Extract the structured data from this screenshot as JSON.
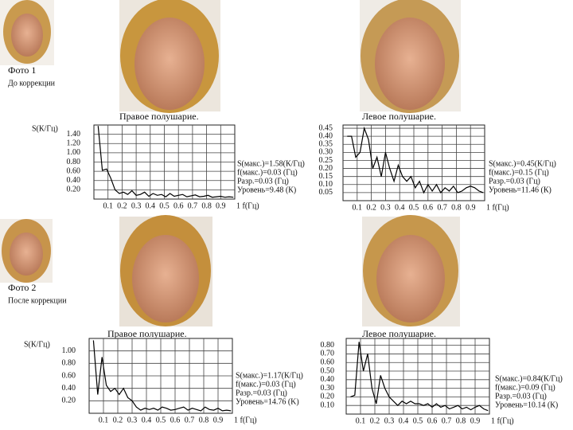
{
  "photo_labels": [
    {
      "title": "Фото 1",
      "subtitle": "До коррекции"
    },
    {
      "title": "Фото 2",
      "subtitle": "После коррекции"
    }
  ],
  "chart_data": [
    {
      "type": "line",
      "title": "Правое полушарие.",
      "ylabel": "S(К/Гц)",
      "x": [
        0.03,
        0.06,
        0.09,
        0.12,
        0.15,
        0.18,
        0.21,
        0.24,
        0.27,
        0.3,
        0.33,
        0.36,
        0.39,
        0.42,
        0.45,
        0.48,
        0.51,
        0.54,
        0.57,
        0.6,
        0.63,
        0.66,
        0.69,
        0.72,
        0.75,
        0.78,
        0.81,
        0.84,
        0.87,
        0.9,
        0.93,
        0.96,
        0.99
      ],
      "values": [
        1.58,
        0.62,
        0.65,
        0.45,
        0.2,
        0.12,
        0.15,
        0.1,
        0.18,
        0.08,
        0.1,
        0.15,
        0.06,
        0.12,
        0.08,
        0.1,
        0.05,
        0.12,
        0.06,
        0.08,
        0.1,
        0.05,
        0.07,
        0.09,
        0.05,
        0.06,
        0.08,
        0.04,
        0.05,
        0.06,
        0.04,
        0.05,
        0.04
      ],
      "color": "#000000",
      "xlim": [
        0,
        1
      ],
      "ylim": [
        0,
        1.6
      ],
      "xticks": [
        0.1,
        0.2,
        0.3,
        0.4,
        0.5,
        0.6,
        0.7,
        0.8,
        0.9,
        {
          "value": 1,
          "label": "1 f(Гц)"
        }
      ],
      "yticks": [
        {
          "value": 0.2,
          "label": "0.20"
        },
        {
          "value": 0.4,
          "label": "0.40"
        },
        {
          "value": 0.6,
          "label": "0.60"
        },
        {
          "value": 0.8,
          "label": "0.80"
        },
        {
          "value": 1.0,
          "label": "1.00"
        },
        {
          "value": 1.2,
          "label": "1.20"
        },
        {
          "value": 1.4,
          "label": "1.40"
        }
      ],
      "grid": true,
      "annotations": [
        "S(макс.)=1.58(К/Гц)",
        "f(макс.)=0.03 (Гц)",
        "Разр.=0.03 (Гц)",
        "Уровень=9.48 (К)"
      ]
    },
    {
      "type": "line",
      "title": "Левое полушарие.",
      "x": [
        0.03,
        0.06,
        0.09,
        0.12,
        0.15,
        0.18,
        0.21,
        0.24,
        0.27,
        0.3,
        0.33,
        0.36,
        0.39,
        0.42,
        0.45,
        0.48,
        0.51,
        0.54,
        0.57,
        0.6,
        0.63,
        0.66,
        0.69,
        0.72,
        0.75,
        0.78,
        0.81,
        0.84,
        0.87,
        0.9,
        0.93,
        0.96,
        0.99
      ],
      "values": [
        0.4,
        0.4,
        0.27,
        0.3,
        0.45,
        0.38,
        0.2,
        0.27,
        0.15,
        0.3,
        0.2,
        0.12,
        0.22,
        0.15,
        0.12,
        0.15,
        0.08,
        0.12,
        0.05,
        0.1,
        0.06,
        0.1,
        0.05,
        0.08,
        0.06,
        0.09,
        0.05,
        0.06,
        0.08,
        0.09,
        0.08,
        0.06,
        0.05
      ],
      "color": "#000000",
      "xlim": [
        0,
        1
      ],
      "ylim": [
        0,
        0.47
      ],
      "xticks": [
        0.1,
        0.2,
        0.3,
        0.4,
        0.5,
        0.6,
        0.7,
        0.8,
        0.9,
        {
          "value": 1,
          "label": "1 f(Гц)"
        }
      ],
      "yticks": [
        0.05,
        {
          "value": 0.1,
          "label": "0.10"
        },
        0.15,
        {
          "value": 0.2,
          "label": "0.20"
        },
        0.25,
        {
          "value": 0.3,
          "label": "0.30"
        },
        0.35,
        {
          "value": 0.4,
          "label": "0.40"
        },
        0.45
      ],
      "grid": true,
      "annotations": [
        "S(макс.)=0.45(К/Гц)",
        "f(макс.)=0.15 (Гц)",
        "Разр.=0.03 (Гц)",
        "Уровень=11.46 (К)"
      ]
    },
    {
      "type": "line",
      "title": "Правое полушарие.",
      "ylabel": "S(К/Гц)",
      "x": [
        0.03,
        0.06,
        0.09,
        0.12,
        0.15,
        0.18,
        0.21,
        0.24,
        0.27,
        0.3,
        0.33,
        0.36,
        0.39,
        0.42,
        0.45,
        0.48,
        0.51,
        0.54,
        0.57,
        0.6,
        0.63,
        0.66,
        0.69,
        0.72,
        0.75,
        0.78,
        0.81,
        0.84,
        0.87,
        0.9,
        0.93,
        0.96,
        0.99
      ],
      "values": [
        1.17,
        0.3,
        0.9,
        0.45,
        0.35,
        0.4,
        0.3,
        0.4,
        0.25,
        0.2,
        0.1,
        0.05,
        0.08,
        0.06,
        0.08,
        0.05,
        0.1,
        0.08,
        0.05,
        0.06,
        0.08,
        0.1,
        0.05,
        0.08,
        0.06,
        0.04,
        0.1,
        0.06,
        0.05,
        0.08,
        0.04,
        0.05,
        0.04
      ],
      "color": "#000000",
      "xlim": [
        0,
        1
      ],
      "ylim": [
        0,
        1.2
      ],
      "xticks": [
        0.1,
        0.2,
        0.3,
        0.4,
        0.5,
        0.6,
        0.7,
        0.8,
        0.9,
        {
          "value": 1,
          "label": "1 f(Гц)"
        }
      ],
      "yticks": [
        {
          "value": 0.2,
          "label": "0.20"
        },
        {
          "value": 0.4,
          "label": "0.40"
        },
        {
          "value": 0.6,
          "label": "0.60"
        },
        {
          "value": 0.8,
          "label": "0.80"
        },
        {
          "value": 1.0,
          "label": "1.00"
        }
      ],
      "grid": true,
      "annotations": [
        "S(макс.)=1.17(К/Гц)",
        "f(макс.)=0.03 (Гц)",
        "Разр.=0.03 (Гц)",
        "Уровень=14.76 (K)"
      ]
    },
    {
      "type": "line",
      "title": "Левое полушарие.",
      "x": [
        0.03,
        0.06,
        0.09,
        0.12,
        0.15,
        0.18,
        0.21,
        0.24,
        0.27,
        0.3,
        0.33,
        0.36,
        0.39,
        0.42,
        0.45,
        0.48,
        0.51,
        0.54,
        0.57,
        0.6,
        0.63,
        0.66,
        0.69,
        0.72,
        0.75,
        0.78,
        0.81,
        0.84,
        0.87,
        0.9,
        0.93,
        0.96,
        0.99
      ],
      "values": [
        0.2,
        0.22,
        0.84,
        0.5,
        0.7,
        0.3,
        0.12,
        0.45,
        0.3,
        0.2,
        0.15,
        0.1,
        0.15,
        0.12,
        0.15,
        0.12,
        0.12,
        0.1,
        0.12,
        0.08,
        0.12,
        0.08,
        0.1,
        0.06,
        0.08,
        0.1,
        0.06,
        0.08,
        0.05,
        0.08,
        0.1,
        0.06,
        0.04
      ],
      "color": "#000000",
      "xlim": [
        0,
        1
      ],
      "ylim": [
        0,
        0.88
      ],
      "xticks": [
        0.1,
        0.2,
        0.3,
        0.4,
        0.5,
        0.6,
        0.7,
        0.8,
        0.9,
        {
          "value": 1,
          "label": "1 f(Гц)"
        }
      ],
      "yticks": [
        {
          "value": 0.1,
          "label": "0.10"
        },
        {
          "value": 0.2,
          "label": "0.20"
        },
        {
          "value": 0.3,
          "label": "0.30"
        },
        {
          "value": 0.4,
          "label": "0.40"
        },
        {
          "value": 0.5,
          "label": "0.50"
        },
        {
          "value": 0.6,
          "label": "0.60"
        },
        {
          "value": 0.7,
          "label": "0.70"
        },
        {
          "value": 0.8,
          "label": "0.80"
        }
      ],
      "grid": true,
      "annotations": [
        "S(макс.)=0.84(К/Гц)",
        "f(макс.)=0.09 (Гц)",
        "Разр.=0.03 (Гц)",
        "Уровень=10.14 (К)"
      ]
    }
  ]
}
